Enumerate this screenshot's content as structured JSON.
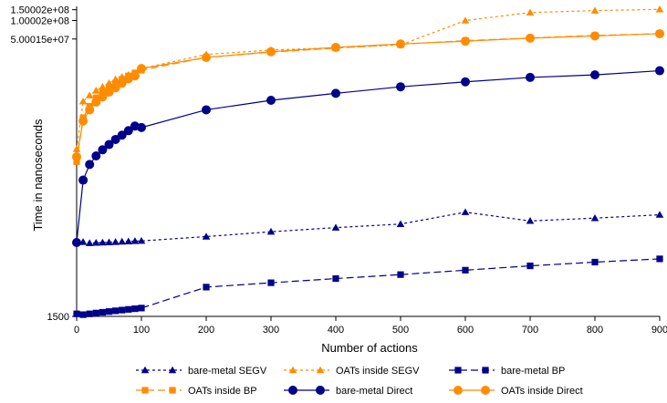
{
  "chart_data": {
    "type": "line",
    "title": "",
    "xlabel": "Number of actions",
    "ylabel": "Time in nanoseconds",
    "scale_y": "log",
    "xlim": [
      0,
      900
    ],
    "x": [
      0,
      10,
      20,
      30,
      40,
      50,
      60,
      70,
      80,
      90,
      100,
      200,
      300,
      400,
      500,
      600,
      700,
      800,
      900
    ],
    "x_ticks": [
      "0",
      "100",
      "200",
      "300",
      "400",
      "500",
      "600",
      "700",
      "800",
      "900"
    ],
    "x_tick_values": [
      0,
      100,
      200,
      300,
      400,
      500,
      600,
      700,
      800,
      900
    ],
    "y_ticks": [
      "1500",
      "5.00015e+07",
      "1.00002e+08",
      "1.50002e+08"
    ],
    "y_tick_values": [
      1500,
      50001500,
      100001500,
      150001500
    ],
    "grid": false,
    "legend_position": "bottom",
    "series": [
      {
        "name": "bare-metal SEGV",
        "color": "#00008b",
        "marker": "triangle",
        "dash": "dotted",
        "values": [
          25000,
          24500,
          23500,
          23800,
          24000,
          24200,
          24500,
          24800,
          25000,
          25300,
          25500,
          30000,
          36000,
          42000,
          48000,
          75000,
          54000,
          60000,
          68000
        ]
      },
      {
        "name": "OATs inside SEGV",
        "color": "#ff8c00",
        "marker": "triangle",
        "dash": "dotted",
        "values": [
          800000,
          4800000,
          6000000,
          7200000,
          8300000,
          9500000,
          11000000,
          12000000,
          13000000,
          13800000,
          16500000,
          28000000,
          33000000,
          36000000,
          40000000,
          100000000,
          135000000,
          145000000,
          152000000
        ]
      },
      {
        "name": "bare-metal BP",
        "color": "#00008b",
        "marker": "square",
        "dash": "dashed",
        "values": [
          1650,
          1600,
          1650,
          1700,
          1750,
          1800,
          1850,
          1900,
          1950,
          2000,
          2050,
          4500,
          5300,
          6200,
          7200,
          8500,
          10000,
          11500,
          13000
        ]
      },
      {
        "name": "OATs inside BP",
        "color": "#ff8c00",
        "marker": "square",
        "dash": "dashed",
        "values": [
          500000,
          2600000,
          4000000,
          5500000,
          7000000,
          8300000,
          9500000,
          11000000,
          12500000,
          14000000,
          15500000,
          25000000,
          30500000,
          35500000,
          41000000,
          47000000,
          52000000,
          57000000,
          61000000
        ]
      },
      {
        "name": "bare-metal Direct",
        "color": "#00008b",
        "marker": "circle",
        "dash": "solid",
        "values": [
          24000,
          250000,
          450000,
          620000,
          780000,
          950000,
          1150000,
          1350000,
          1600000,
          1900000,
          1800000,
          3500000,
          5000000,
          6500000,
          8300000,
          10000000,
          11800000,
          13000000,
          15200000
        ]
      },
      {
        "name": "OATs inside Direct",
        "color": "#ff8c00",
        "marker": "circle",
        "dash": "solid",
        "values": [
          600000,
          2300000,
          3500000,
          4700000,
          5700000,
          6800000,
          8000000,
          9500000,
          11200000,
          12500000,
          16500000,
          25000000,
          31000000,
          36500000,
          41500000,
          46000000,
          51500000,
          56000000,
          61000000
        ]
      }
    ]
  }
}
